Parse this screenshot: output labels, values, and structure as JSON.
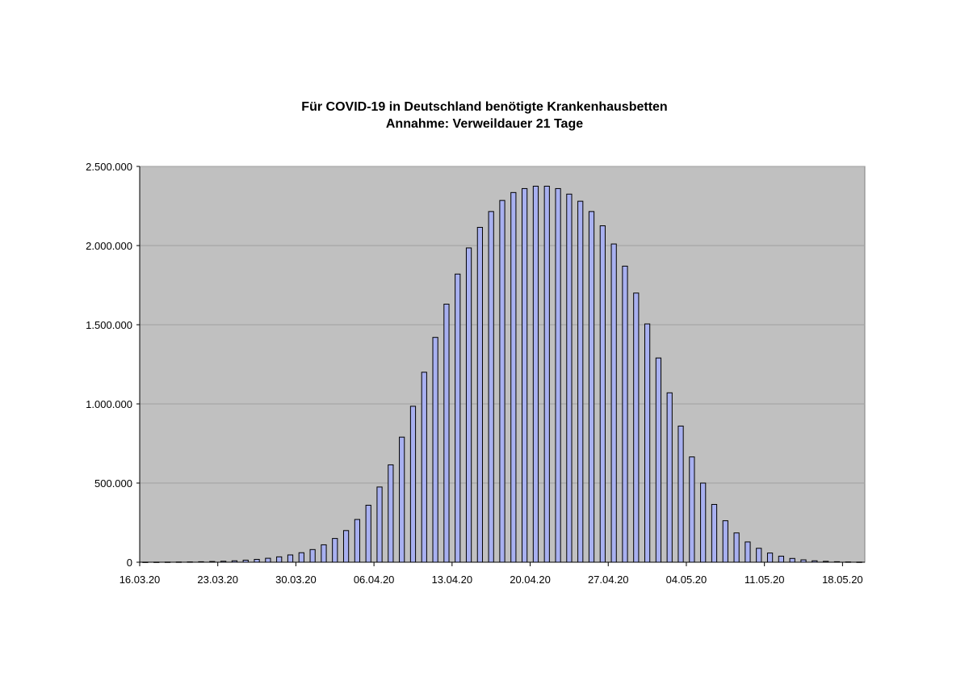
{
  "chart_data": {
    "type": "bar",
    "title_line1": "Für COVID-19 in Deutschland benötigte Krankenhausbetten",
    "title_line2": "Annahme: Verweildauer 21 Tage",
    "xlabel": "",
    "ylabel": "",
    "ylim": [
      0,
      2500000
    ],
    "yticks": [
      0,
      500000,
      1000000,
      1500000,
      2000000,
      2500000
    ],
    "ytick_labels": [
      "0",
      "500.000",
      "1.000.000",
      "1.500.000",
      "2.000.000",
      "2.500.000"
    ],
    "xtick_labels": [
      "16.03.20",
      "23.03.20",
      "30.03.20",
      "06.04.20",
      "13.04.20",
      "20.04.20",
      "27.04.20",
      "04.05.20",
      "11.05.20",
      "18.05.20"
    ],
    "xtick_every": 7,
    "grid": true,
    "legend": "none",
    "colors": {
      "bar_fill": "#a8b0f0",
      "bar_stroke": "#000000",
      "plot_bg": "#c0c0c0",
      "grid": "#a0a0a0"
    },
    "categories": [
      "16.03.20",
      "17.03.20",
      "18.03.20",
      "19.03.20",
      "20.03.20",
      "21.03.20",
      "22.03.20",
      "23.03.20",
      "24.03.20",
      "25.03.20",
      "26.03.20",
      "27.03.20",
      "28.03.20",
      "29.03.20",
      "30.03.20",
      "31.03.20",
      "01.04.20",
      "02.04.20",
      "03.04.20",
      "04.04.20",
      "05.04.20",
      "06.04.20",
      "07.04.20",
      "08.04.20",
      "09.04.20",
      "10.04.20",
      "11.04.20",
      "12.04.20",
      "13.04.20",
      "14.04.20",
      "15.04.20",
      "16.04.20",
      "17.04.20",
      "18.04.20",
      "19.04.20",
      "20.04.20",
      "21.04.20",
      "22.04.20",
      "23.04.20",
      "24.04.20",
      "25.04.20",
      "26.04.20",
      "27.04.20",
      "28.04.20",
      "29.04.20",
      "30.04.20",
      "01.05.20",
      "02.05.20",
      "03.05.20",
      "04.05.20",
      "05.05.20",
      "06.05.20",
      "07.05.20",
      "08.05.20",
      "09.05.20",
      "10.05.20",
      "11.05.20",
      "12.05.20",
      "13.05.20",
      "14.05.20",
      "15.05.20",
      "16.05.20",
      "17.05.20",
      "18.05.20",
      "19.05.20"
    ],
    "values": [
      500,
      700,
      1000,
      1500,
      2000,
      3000,
      4500,
      6000,
      9000,
      13000,
      18000,
      25000,
      34000,
      46000,
      60000,
      80000,
      110000,
      150000,
      200000,
      270000,
      360000,
      475000,
      615000,
      790000,
      985000,
      1200000,
      1420000,
      1630000,
      1820000,
      1985000,
      2115000,
      2215000,
      2285000,
      2335000,
      2360000,
      2375000,
      2375000,
      2360000,
      2325000,
      2280000,
      2215000,
      2125000,
      2010000,
      1870000,
      1700000,
      1505000,
      1290000,
      1070000,
      860000,
      665000,
      500000,
      365000,
      262000,
      185000,
      128000,
      88000,
      58000,
      38000,
      24000,
      15000,
      9000,
      5500,
      3200,
      1800,
      1000
    ]
  }
}
